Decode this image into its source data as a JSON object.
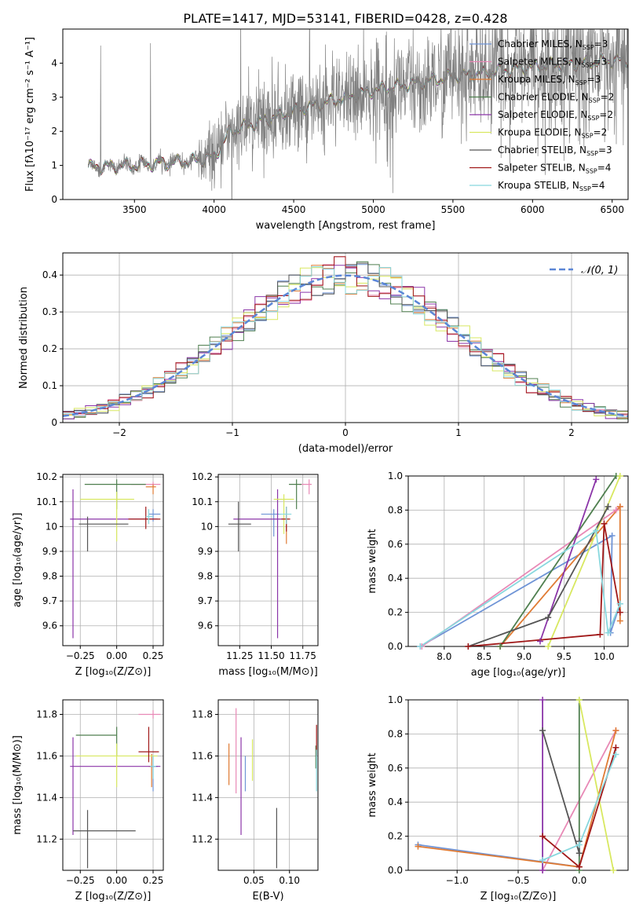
{
  "figure_title": "PLATE=1417, MJD=53141, FIBERID=0428, z=0.428",
  "models": [
    {
      "name": "Chabrier MILES, N",
      "sub": "SSP",
      "n": "=3",
      "color": "#6f94d6"
    },
    {
      "name": "Salpeter MILES, N",
      "sub": "SSP",
      "n": "=3",
      "color": "#e889b6"
    },
    {
      "name": "Kroupa MILES, N",
      "sub": "SSP",
      "n": "=3",
      "color": "#e07b34"
    },
    {
      "name": "Chabrier ELODIE, N",
      "sub": "SSP",
      "n": "=2",
      "color": "#4f7f4f"
    },
    {
      "name": "Salpeter ELODIE, N",
      "sub": "SSP",
      "n": "=2",
      "color": "#8b35a8"
    },
    {
      "name": "Kroupa ELODIE, N",
      "sub": "SSP",
      "n": "=2",
      "color": "#d8e860"
    },
    {
      "name": "Chabrier STELIB, N",
      "sub": "SSP",
      "n": "=3",
      "color": "#555555"
    },
    {
      "name": "Salpeter STELIB, N",
      "sub": "SSP",
      "n": "=4",
      "color": "#a01818"
    },
    {
      "name": "Kroupa STELIB, N",
      "sub": "SSP",
      "n": "=4",
      "color": "#88d8de"
    }
  ],
  "chart_data": [
    {
      "id": "spectrum",
      "type": "line",
      "xlabel": "wavelength [Angstrom, rest frame]",
      "ylabel": "Flux [fλ10⁻¹⁷ erg cm⁻² s⁻¹ A⁻¹]",
      "xlim": [
        3050,
        6600
      ],
      "ylim": [
        0,
        5
      ],
      "xticks": [
        3500,
        4000,
        4500,
        5000,
        5500,
        6000,
        6500
      ],
      "yticks": [
        0,
        1,
        2,
        3,
        4
      ],
      "x_start": 3210,
      "x_end": 6600,
      "continuum_nodes": [
        [
          3210,
          0.95
        ],
        [
          3500,
          1.0
        ],
        [
          3900,
          1.15
        ],
        [
          4000,
          1.25
        ],
        [
          4100,
          2.0
        ],
        [
          4500,
          2.6
        ],
        [
          5000,
          3.2
        ],
        [
          5500,
          3.6
        ],
        [
          6000,
          3.9
        ],
        [
          6600,
          4.1
        ]
      ],
      "data_color": "#808080"
    },
    {
      "id": "residuals",
      "type": "histogram",
      "xlabel": "(data-model)/error",
      "ylabel": "Normed distribution",
      "xlim": [
        -2.5,
        2.5
      ],
      "ylim": [
        0,
        0.46
      ],
      "xticks": [
        -2,
        -1,
        0,
        1,
        2
      ],
      "yticks": [
        0.0,
        0.1,
        0.2,
        0.3,
        0.4
      ],
      "grid": true,
      "bin_width": 0.1,
      "reference": {
        "label": "𝒩(0, 1)",
        "mean": 0,
        "sigma": 1,
        "color": "#5b86d6"
      },
      "legend_position": "top-right"
    },
    {
      "id": "age_vs_Z",
      "type": "errorbar",
      "xlabel": "Z [log₁₀(Z/Z⊙)]",
      "ylabel": "age  [log₁₀(age/yr)]",
      "xlim": [
        -0.37,
        0.32
      ],
      "ylim": [
        9.52,
        10.21
      ],
      "xticks": [
        -0.25,
        0.0,
        0.25
      ],
      "xticklabels": [
        "−0.25",
        "0.00",
        "0.25"
      ],
      "yticks": [
        9.6,
        9.7,
        9.8,
        9.9,
        10.0,
        10.1,
        10.2
      ],
      "points": [
        {
          "m": 0,
          "x": 0.25,
          "xe": [
            0.03,
            0.05
          ],
          "y": 10.05,
          "ye": [
            0.03,
            0.02
          ]
        },
        {
          "m": 1,
          "x": 0.25,
          "xe": [
            0.15,
            0.05
          ],
          "y": 10.17,
          "ye": [
            0.01,
            0.01
          ]
        },
        {
          "m": 2,
          "x": 0.25,
          "xe": [
            0.05,
            0.02
          ],
          "y": 10.16,
          "ye": [
            0.03,
            0.01
          ]
        },
        {
          "m": 3,
          "x": 0.0,
          "xe": [
            0.22,
            0.2
          ],
          "y": 10.17,
          "ye": [
            0.1,
            0.02
          ]
        },
        {
          "m": 4,
          "x": -0.3,
          "xe": [
            0.02,
            0.58
          ],
          "y": 10.03,
          "ye": [
            0.48,
            0.12
          ]
        },
        {
          "m": 5,
          "x": 0.0,
          "xe": [
            0.25,
            0.12
          ],
          "y": 10.11,
          "ye": [
            0.17,
            0.03
          ]
        },
        {
          "m": 6,
          "x": -0.2,
          "xe": [
            0.06,
            0.28
          ],
          "y": 10.01,
          "ye": [
            0.11,
            0.03
          ]
        },
        {
          "m": 7,
          "x": 0.2,
          "xe": [
            0.12,
            0.1
          ],
          "y": 10.03,
          "ye": [
            0.04,
            0.05
          ]
        },
        {
          "m": 8,
          "x": 0.22,
          "xe": [
            0.02,
            0.03
          ],
          "y": 10.04,
          "ye": [
            0.03,
            0.03
          ]
        }
      ]
    },
    {
      "id": "age_vs_mass",
      "type": "errorbar",
      "xlabel": "mass [log₁₀(M/M⊙)]",
      "ylabel": "",
      "xlim": [
        11.08,
        11.87
      ],
      "ylim": [
        9.52,
        10.21
      ],
      "xticks": [
        11.25,
        11.5,
        11.75
      ],
      "xticklabels": [
        "11.25",
        "11.50",
        "11.75"
      ],
      "yticks": [
        9.6,
        9.7,
        9.8,
        9.9,
        10.0,
        10.1,
        10.2
      ],
      "points": [
        {
          "m": 0,
          "x": 11.52,
          "xe": [
            0.1,
            0.06
          ],
          "y": 10.05,
          "ye": [
            0.09,
            0.02
          ]
        },
        {
          "m": 1,
          "x": 11.8,
          "xe": [
            0.08,
            0.02
          ],
          "y": 10.17,
          "ye": [
            0.04,
            0.02
          ]
        },
        {
          "m": 2,
          "x": 11.62,
          "xe": [
            0.03,
            0.02
          ],
          "y": 10.03,
          "ye": [
            0.1,
            0.02
          ]
        },
        {
          "m": 3,
          "x": 11.7,
          "xe": [
            0.06,
            0.04
          ],
          "y": 10.17,
          "ye": [
            0.1,
            0.02
          ]
        },
        {
          "m": 4,
          "x": 11.55,
          "xe": [
            0.35,
            0.05
          ],
          "y": 10.03,
          "ye": [
            0.48,
            0.12
          ]
        },
        {
          "m": 5,
          "x": 11.6,
          "xe": [
            0.08,
            0.08
          ],
          "y": 10.11,
          "ye": [
            0.14,
            0.02
          ]
        },
        {
          "m": 6,
          "x": 11.24,
          "xe": [
            0.08,
            0.1
          ],
          "y": 10.01,
          "ye": [
            0.11,
            0.09
          ]
        },
        {
          "m": 7,
          "x": 11.62,
          "xe": [
            0.04,
            0.03
          ],
          "y": 10.03,
          "ye": [
            0.05,
            0.05
          ]
        },
        {
          "m": 8,
          "x": 11.62,
          "xe": [
            0.06,
            0.04
          ],
          "y": 10.05,
          "ye": [
            0.04,
            0.03
          ]
        }
      ]
    },
    {
      "id": "weight_vs_age",
      "type": "line",
      "xlabel": "age  [log₁₀(age/yr)]",
      "ylabel": "mass weight",
      "xlim": [
        7.55,
        10.3
      ],
      "ylim": [
        0.0,
        1.0
      ],
      "xticks": [
        8.0,
        8.5,
        9.0,
        9.5,
        10.0
      ],
      "xticklabels": [
        "8.0",
        "8.5",
        "9.0",
        "9.5",
        "10.0"
      ],
      "yticks": [
        0.0,
        0.2,
        0.4,
        0.6,
        0.8,
        1.0
      ],
      "yticklabels": [
        "0.0",
        "0.2",
        "0.4",
        "0.6",
        "0.8",
        "1.0"
      ],
      "series": [
        {
          "m": 0,
          "points": [
            [
              7.7,
              0.0
            ],
            [
              10.1,
              0.65
            ],
            [
              10.08,
              0.08
            ],
            [
              10.2,
              0.25
            ]
          ]
        },
        {
          "m": 1,
          "points": [
            [
              7.72,
              0.0
            ],
            [
              10.15,
              0.8
            ],
            [
              10.2,
              0.82
            ]
          ]
        },
        {
          "m": 2,
          "points": [
            [
              8.7,
              0.0
            ],
            [
              10.2,
              0.82
            ],
            [
              10.2,
              0.15
            ]
          ]
        },
        {
          "m": 3,
          "points": [
            [
              8.7,
              0.0
            ],
            [
              10.15,
              1.0
            ]
          ]
        },
        {
          "m": 4,
          "points": [
            [
              9.2,
              0.03
            ],
            [
              9.9,
              0.98
            ]
          ]
        },
        {
          "m": 5,
          "points": [
            [
              9.3,
              0.0
            ],
            [
              10.2,
              1.0
            ]
          ]
        },
        {
          "m": 6,
          "points": [
            [
              8.3,
              0.0
            ],
            [
              9.3,
              0.17
            ],
            [
              10.05,
              0.82
            ]
          ]
        },
        {
          "m": 7,
          "points": [
            [
              8.3,
              0.0
            ],
            [
              9.95,
              0.07
            ],
            [
              10.0,
              0.72
            ],
            [
              10.2,
              0.2
            ]
          ]
        },
        {
          "m": 8,
          "points": [
            [
              7.7,
              0.0
            ],
            [
              9.9,
              0.68
            ],
            [
              10.05,
              0.08
            ],
            [
              10.2,
              0.25
            ]
          ]
        }
      ]
    },
    {
      "id": "mass_vs_Z",
      "type": "errorbar",
      "xlabel": "Z [log₁₀(Z/Z⊙)]",
      "ylabel": "mass [log₁₀(M/M⊙)]",
      "xlim": [
        -0.37,
        0.32
      ],
      "ylim": [
        11.05,
        11.87
      ],
      "xticks": [
        -0.25,
        0.0,
        0.25
      ],
      "xticklabels": [
        "−0.25",
        "0.00",
        "0.25"
      ],
      "yticks": [
        11.2,
        11.4,
        11.6,
        11.8
      ],
      "points": [
        {
          "m": 0,
          "x": 0.25,
          "xe": [
            0.02,
            0.03
          ],
          "y": 11.55,
          "ye": [
            0.12,
            0.05
          ]
        },
        {
          "m": 1,
          "x": 0.25,
          "xe": [
            0.1,
            0.05
          ],
          "y": 11.8,
          "ye": [
            0.02,
            0.02
          ]
        },
        {
          "m": 2,
          "x": 0.24,
          "xe": [
            0.02,
            0.02
          ],
          "y": 11.55,
          "ye": [
            0.1,
            0.06
          ]
        },
        {
          "m": 3,
          "x": 0.0,
          "xe": [
            0.28,
            0.0
          ],
          "y": 11.7,
          "ye": [
            0.1,
            0.04
          ]
        },
        {
          "m": 4,
          "x": -0.3,
          "xe": [
            0.02,
            0.6
          ],
          "y": 11.55,
          "ye": [
            0.33,
            0.14
          ]
        },
        {
          "m": 5,
          "x": 0.0,
          "xe": [
            0.28,
            0.28
          ],
          "y": 11.6,
          "ye": [
            0.15,
            0.06
          ]
        },
        {
          "m": 6,
          "x": -0.2,
          "xe": [
            0.1,
            0.33
          ],
          "y": 11.24,
          "ye": [
            0.18,
            0.1
          ]
        },
        {
          "m": 7,
          "x": 0.22,
          "xe": [
            0.07,
            0.07
          ],
          "y": 11.62,
          "ye": [
            0.05,
            0.12
          ]
        },
        {
          "m": 8,
          "x": 0.25,
          "xe": [
            0.02,
            0.02
          ],
          "y": 11.55,
          "ye": [
            0.06,
            0.05
          ]
        }
      ]
    },
    {
      "id": "mass_vs_EBV",
      "type": "errorbar",
      "xlabel": "E(B-V)",
      "ylabel": "",
      "xlim": [
        0.0,
        0.14
      ],
      "ylim": [
        11.05,
        11.87
      ],
      "xticks": [
        0.05,
        0.1
      ],
      "xticklabels": [
        "0.05",
        "0.10"
      ],
      "yticks": [
        11.2,
        11.4,
        11.6,
        11.8
      ],
      "points": [
        {
          "m": 0,
          "x": 0.038,
          "xe": [
            0,
            0
          ],
          "y": 11.55,
          "ye": [
            0.12,
            0.05
          ]
        },
        {
          "m": 1,
          "x": 0.025,
          "xe": [
            0,
            0
          ],
          "y": 11.6,
          "ye": [
            0.18,
            0.23
          ]
        },
        {
          "m": 2,
          "x": 0.015,
          "xe": [
            0,
            0
          ],
          "y": 11.55,
          "ye": [
            0.09,
            0.11
          ]
        },
        {
          "m": 3,
          "x": 0.137,
          "xe": [
            0,
            0
          ],
          "y": 11.6,
          "ye": [
            0.06,
            0.05
          ]
        },
        {
          "m": 4,
          "x": 0.032,
          "xe": [
            0,
            0
          ],
          "y": 11.5,
          "ye": [
            0.28,
            0.19
          ]
        },
        {
          "m": 5,
          "x": 0.048,
          "xe": [
            0,
            0
          ],
          "y": 11.6,
          "ye": [
            0.12,
            0.08
          ]
        },
        {
          "m": 6,
          "x": 0.082,
          "xe": [
            0,
            0
          ],
          "y": 11.22,
          "ye": [
            0.16,
            0.13
          ]
        },
        {
          "m": 7,
          "x": 0.138,
          "xe": [
            0,
            0
          ],
          "y": 11.65,
          "ye": [
            0.05,
            0.1
          ]
        },
        {
          "m": 8,
          "x": 0.138,
          "xe": [
            0,
            0
          ],
          "y": 11.55,
          "ye": [
            0.12,
            0.08
          ]
        }
      ]
    },
    {
      "id": "weight_vs_Z",
      "type": "line",
      "xlabel": "Z [log₁₀(Z/Z⊙)]",
      "ylabel": "mass weight",
      "xlim": [
        -1.4,
        0.4
      ],
      "ylim": [
        0.0,
        1.0
      ],
      "xticks": [
        -1.0,
        -0.5,
        0.0
      ],
      "xticklabels": [
        "−1.0",
        "−0.5",
        "0.0"
      ],
      "yticks": [
        0.0,
        0.2,
        0.4,
        0.6,
        0.8,
        1.0
      ],
      "yticklabels": [
        "0.0",
        "0.2",
        "0.4",
        "0.6",
        "0.8",
        "1.0"
      ],
      "series": [
        {
          "m": 0,
          "points": [
            [
              -1.32,
              0.15
            ],
            [
              0.0,
              0.02
            ]
          ]
        },
        {
          "m": 1,
          "points": [
            [
              -0.3,
              0.0
            ],
            [
              0.3,
              0.82
            ]
          ]
        },
        {
          "m": 2,
          "points": [
            [
              -1.32,
              0.14
            ],
            [
              0.0,
              0.02
            ],
            [
              0.3,
              0.82
            ]
          ]
        },
        {
          "m": 3,
          "points": [
            [
              0.0,
              1.0
            ],
            [
              0.0,
              0.0
            ]
          ]
        },
        {
          "m": 4,
          "points": [
            [
              -0.3,
              0.0
            ],
            [
              -0.3,
              1.0
            ]
          ]
        },
        {
          "m": 5,
          "points": [
            [
              0.0,
              1.0
            ],
            [
              0.28,
              0.0
            ]
          ]
        },
        {
          "m": 6,
          "points": [
            [
              -0.3,
              0.82
            ],
            [
              0.0,
              0.1
            ],
            [
              0.0,
              0.17
            ]
          ]
        },
        {
          "m": 7,
          "points": [
            [
              -0.3,
              0.2
            ],
            [
              0.0,
              0.02
            ],
            [
              0.3,
              0.72
            ]
          ]
        },
        {
          "m": 8,
          "points": [
            [
              -0.3,
              0.06
            ],
            [
              0.0,
              0.15
            ],
            [
              0.3,
              0.68
            ]
          ]
        }
      ]
    }
  ]
}
